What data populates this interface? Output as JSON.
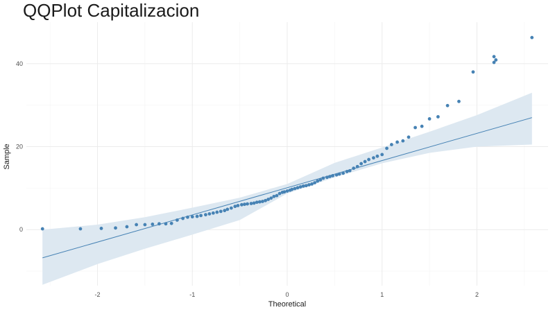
{
  "chart_data": {
    "type": "scatter",
    "title": "QQPlot Capitalizacion",
    "xlabel": "Theoretical",
    "ylabel": "Sample",
    "xlim": [
      -2.75,
      2.75
    ],
    "ylim": [
      -13.5,
      50
    ],
    "x_ticks": [
      -2,
      -1,
      0,
      1,
      2
    ],
    "y_ticks": [
      0,
      20,
      40
    ],
    "grid": true,
    "colors": {
      "points": "#4682b4",
      "line": "#4682b4",
      "band": "#dde8f1"
    },
    "reference_line": {
      "x": [
        -2.58,
        2.58
      ],
      "y": [
        -6.8,
        27.0
      ]
    },
    "confidence_band": {
      "x": [
        -2.58,
        -2.0,
        -1.5,
        -1.0,
        -0.5,
        0.0,
        0.5,
        1.0,
        1.5,
        2.0,
        2.58
      ],
      "lower": [
        -13.3,
        -8.3,
        -4.6,
        -1.2,
        2.3,
        8.7,
        12.6,
        16.0,
        18.5,
        20.0,
        20.5
      ],
      "upper": [
        0.0,
        1.2,
        3.0,
        5.3,
        7.7,
        11.0,
        16.1,
        19.8,
        23.6,
        27.6,
        33.0
      ]
    },
    "points": [
      [
        -2.58,
        0.2
      ],
      [
        -2.18,
        0.2
      ],
      [
        -1.96,
        0.3
      ],
      [
        -1.81,
        0.4
      ],
      [
        -1.69,
        0.7
      ],
      [
        -1.59,
        1.2
      ],
      [
        -1.5,
        1.2
      ],
      [
        -1.42,
        1.3
      ],
      [
        -1.35,
        1.4
      ],
      [
        -1.28,
        1.4
      ],
      [
        -1.22,
        1.5
      ],
      [
        -1.16,
        2.3
      ],
      [
        -1.1,
        2.7
      ],
      [
        -1.05,
        3.0
      ],
      [
        -1.0,
        3.1
      ],
      [
        -0.95,
        3.2
      ],
      [
        -0.91,
        3.4
      ],
      [
        -0.86,
        3.6
      ],
      [
        -0.82,
        3.8
      ],
      [
        -0.78,
        4.0
      ],
      [
        -0.74,
        4.2
      ],
      [
        -0.7,
        4.4
      ],
      [
        -0.66,
        4.6
      ],
      [
        -0.63,
        4.9
      ],
      [
        -0.59,
        5.2
      ],
      [
        -0.55,
        5.6
      ],
      [
        -0.52,
        5.8
      ],
      [
        -0.48,
        6.0
      ],
      [
        -0.45,
        6.1
      ],
      [
        -0.42,
        6.2
      ],
      [
        -0.38,
        6.3
      ],
      [
        -0.35,
        6.4
      ],
      [
        -0.32,
        6.6
      ],
      [
        -0.29,
        6.7
      ],
      [
        -0.26,
        6.8
      ],
      [
        -0.23,
        7.0
      ],
      [
        -0.2,
        7.3
      ],
      [
        -0.17,
        7.6
      ],
      [
        -0.14,
        8.0
      ],
      [
        -0.11,
        8.2
      ],
      [
        -0.08,
        8.7
      ],
      [
        -0.05,
        9.0
      ],
      [
        -0.03,
        9.1
      ],
      [
        0.0,
        9.3
      ],
      [
        0.03,
        9.5
      ],
      [
        0.05,
        9.7
      ],
      [
        0.08,
        9.9
      ],
      [
        0.11,
        10.1
      ],
      [
        0.14,
        10.3
      ],
      [
        0.17,
        10.5
      ],
      [
        0.2,
        10.6
      ],
      [
        0.23,
        10.8
      ],
      [
        0.26,
        11.0
      ],
      [
        0.29,
        11.3
      ],
      [
        0.32,
        11.7
      ],
      [
        0.35,
        12.0
      ],
      [
        0.38,
        12.4
      ],
      [
        0.42,
        12.6
      ],
      [
        0.45,
        12.8
      ],
      [
        0.48,
        13.0
      ],
      [
        0.52,
        13.2
      ],
      [
        0.55,
        13.4
      ],
      [
        0.59,
        13.6
      ],
      [
        0.63,
        14.0
      ],
      [
        0.66,
        14.2
      ],
      [
        0.7,
        14.8
      ],
      [
        0.74,
        15.2
      ],
      [
        0.78,
        15.9
      ],
      [
        0.82,
        16.4
      ],
      [
        0.86,
        16.9
      ],
      [
        0.91,
        17.3
      ],
      [
        0.95,
        17.7
      ],
      [
        1.0,
        18.1
      ],
      [
        1.05,
        19.6
      ],
      [
        1.1,
        20.5
      ],
      [
        1.16,
        21.1
      ],
      [
        1.22,
        21.4
      ],
      [
        1.28,
        22.3
      ],
      [
        1.35,
        24.6
      ],
      [
        1.42,
        24.9
      ],
      [
        1.5,
        26.7
      ],
      [
        1.59,
        27.2
      ],
      [
        1.69,
        29.9
      ],
      [
        1.81,
        30.9
      ],
      [
        1.96,
        38.0
      ],
      [
        2.18,
        40.3
      ],
      [
        2.2,
        40.9
      ],
      [
        2.18,
        41.7
      ],
      [
        2.58,
        46.3
      ]
    ]
  }
}
